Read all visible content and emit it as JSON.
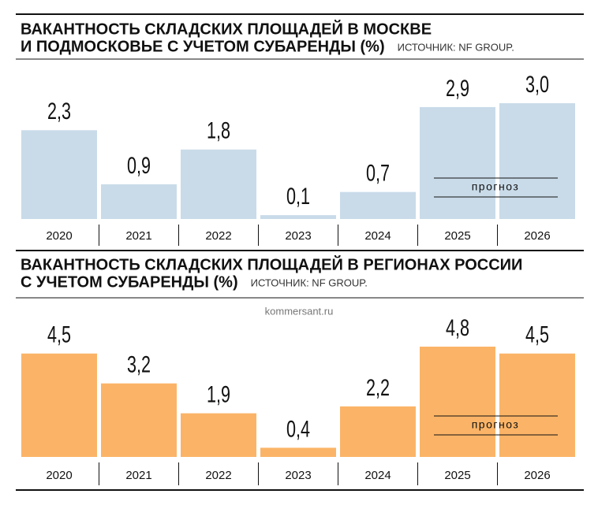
{
  "chart_data": [
    {
      "type": "bar",
      "title": [
        "ВАКАНТНОСТЬ СКЛАДСКИХ ПЛОЩАДЕЙ В МОСКВЕ",
        "И ПОДМОСКОВЬЕ С УЧЕТОМ СУБАРЕНДЫ (%)"
      ],
      "source": "ИСТОЧНИК: NF GROUP.",
      "categories": [
        "2020",
        "2021",
        "2022",
        "2023",
        "2024",
        "2025",
        "2026"
      ],
      "values": [
        2.3,
        0.9,
        1.8,
        0.1,
        0.7,
        2.9,
        3.0
      ],
      "value_labels": [
        "2,3",
        "0,9",
        "1,8",
        "0,1",
        "0,7",
        "2,9",
        "3,0"
      ],
      "color": "#c9dbe9",
      "annotation": "прогноз"
    },
    {
      "type": "bar",
      "title": [
        "ВАКАНТНОСТЬ СКЛАДСКИХ ПЛОЩАДЕЙ В РЕГИОНАХ РОССИИ",
        "С УЧЕТОМ СУБАРЕНДЫ (%)"
      ],
      "source": "ИСТОЧНИК: NF GROUP.",
      "categories": [
        "2020",
        "2021",
        "2022",
        "2023",
        "2024",
        "2025",
        "2026"
      ],
      "values": [
        4.5,
        3.2,
        1.9,
        0.4,
        2.2,
        4.8,
        4.5
      ],
      "value_labels": [
        "4,5",
        "3,2",
        "1,9",
        "0,4",
        "2,2",
        "4,8",
        "4,5"
      ],
      "color": "#fbb467",
      "annotation": "прогноз"
    }
  ],
  "watermark": "kommersant.ru"
}
